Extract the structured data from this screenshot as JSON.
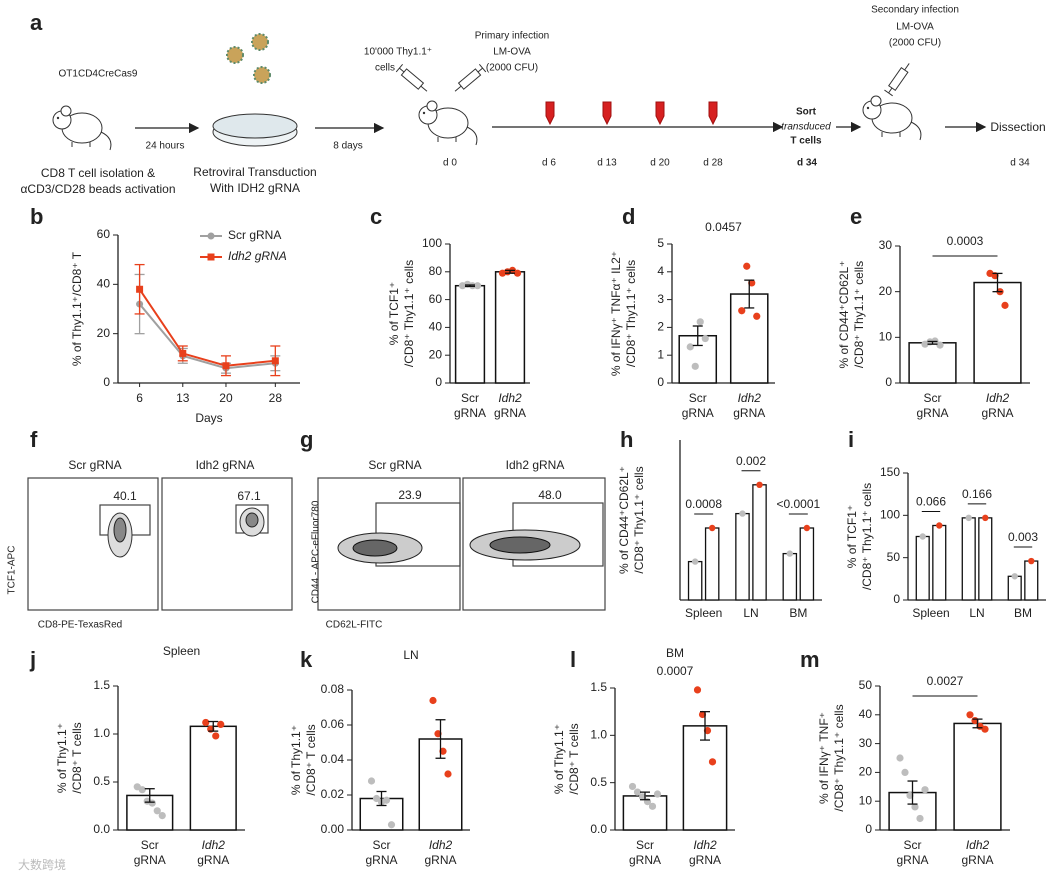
{
  "schematic": {
    "label": "a",
    "texts": [
      "OT1CD4CreCas9",
      "24 hours",
      "CD8 T cell isolation &",
      "αCD3/CD28 beads activation",
      "Retroviral Transduction",
      "With IDH2 gRNA",
      "8 days",
      "10'000 Thy1.1⁺",
      "cells",
      "Primary infection",
      "LM-OVA",
      "(2000 CFU)",
      "d 0",
      "d 6",
      "d 13",
      "d 20",
      "d 28",
      "d 34",
      "Sort",
      "transduced",
      "T cells",
      "Secondary infection",
      "LM-OVA",
      "(2000 CFU)",
      "Dissection",
      "d 34"
    ]
  },
  "flow": [
    {
      "label": "f",
      "samples": [
        "Scr gRNA",
        "Idh2 gRNA"
      ],
      "gates": [
        "40.1",
        "67.1"
      ],
      "ylabel": "TCF1-APC",
      "xlabel": "CD8-PE-TexasRed"
    },
    {
      "label": "g",
      "samples": [
        "Scr gRNA",
        "Idh2 gRNA"
      ],
      "gates": [
        "23.9",
        "48.0"
      ],
      "ylabel": "CD44 - APC-eFluor780",
      "xlabel": "CD62L-FITC"
    }
  ],
  "watermark": "大数跨境",
  "chart_data": [
    {
      "type": "line",
      "panel": "b",
      "x": [
        6,
        13,
        20,
        28
      ],
      "xlim": [
        2.5,
        32
      ],
      "xticks": [
        6,
        13,
        20,
        28
      ],
      "xlabel": "Days",
      "ylabel": [
        "% of Thy1.1⁺/CD8⁺ T"
      ],
      "ylim": [
        0,
        60
      ],
      "yticks": [
        0,
        20,
        40,
        60
      ],
      "series": [
        {
          "name": "Scr gRNA",
          "color": "#a0a0a0",
          "values": [
            32,
            11,
            6,
            8
          ],
          "errors": [
            12,
            3,
            2,
            3
          ]
        },
        {
          "name": "Idh2 gRNA",
          "color": "#e8401c",
          "values": [
            38,
            12,
            7,
            9
          ],
          "errors": [
            10,
            3,
            4,
            6
          ]
        }
      ]
    },
    {
      "type": "bar",
      "panel": "c",
      "ylabel": [
        "% of TCF1⁺",
        "/CD8⁺ Thy1.1⁺ cells"
      ],
      "categories": [
        [
          "Scr",
          "gRNA"
        ],
        [
          "Idh2",
          "gRNA"
        ]
      ],
      "values": [
        70,
        80
      ],
      "errors": [
        0.5,
        1
      ],
      "points": [
        [
          70,
          71,
          70,
          70
        ],
        [
          79,
          80,
          81,
          79
        ]
      ],
      "colors": [
        "#bdbdbd",
        "#e8401c"
      ],
      "ylim": [
        0,
        100
      ],
      "yticks": [
        0,
        20,
        40,
        60,
        80,
        100
      ]
    },
    {
      "type": "bar",
      "panel": "d",
      "ylabel": [
        "% of IFNγ⁺ TNFα⁺ IL2⁺",
        "/CD8⁺ Thy1.1⁺ cells"
      ],
      "categories": [
        [
          "Scr",
          "gRNA"
        ],
        [
          "Idh2",
          "gRNA"
        ]
      ],
      "values": [
        1.7,
        3.2
      ],
      "errors": [
        0.35,
        0.5
      ],
      "points": [
        [
          1.3,
          0.6,
          2.2,
          1.6
        ],
        [
          2.6,
          4.2,
          3.6,
          2.4
        ]
      ],
      "colors": [
        "#bdbdbd",
        "#e8401c"
      ],
      "ylim": [
        0,
        5
      ],
      "yticks": [
        0,
        1,
        2,
        3,
        4,
        5
      ],
      "pvalue": "0.0457",
      "bracket": false
    },
    {
      "type": "bar",
      "panel": "e",
      "ylabel": [
        "% of CD44⁺CD62L⁺",
        "/CD8⁺ Thy1.1⁺ cells"
      ],
      "categories": [
        [
          "Scr",
          "gRNA"
        ],
        [
          "Idh2",
          "gRNA"
        ]
      ],
      "values": [
        8.8,
        22
      ],
      "errors": [
        0.3,
        2
      ],
      "points": [
        [
          8.5,
          9,
          9.2,
          8.3
        ],
        [
          24,
          23.5,
          20,
          17
        ]
      ],
      "colors": [
        "#bdbdbd",
        "#e8401c"
      ],
      "ylim": [
        0,
        30
      ],
      "yticks": [
        0,
        10,
        20,
        30
      ],
      "pvalue": "0.0003"
    },
    {
      "type": "grouped_bar",
      "panel": "h",
      "ylabel": [
        "% of CD44⁺CD62L⁺",
        "/CD8⁺ Thy1.1⁺ cells"
      ],
      "categories": [
        "Spleen",
        "LN",
        "BM"
      ],
      "ylim": [
        0,
        100
      ],
      "series": [
        {
          "color": "#bdbdbd",
          "values": [
            24,
            54,
            29
          ]
        },
        {
          "color": "#e8401c",
          "values": [
            45,
            72,
            45
          ]
        }
      ],
      "pvalues": [
        "0.0008",
        "0.002",
        "<0.0001"
      ]
    },
    {
      "type": "grouped_bar",
      "panel": "i",
      "ylabel": [
        "% of TCF1⁺",
        "/CD8⁺ Thy1.1⁺ cells"
      ],
      "categories": [
        "Spleen",
        "LN",
        "BM"
      ],
      "ylim": [
        0,
        150
      ],
      "yticks": [
        0,
        50,
        100,
        150
      ],
      "series": [
        {
          "color": "#bdbdbd",
          "values": [
            75,
            97,
            28
          ]
        },
        {
          "color": "#e8401c",
          "values": [
            88,
            97,
            46
          ]
        }
      ],
      "pvalues": [
        "0.066",
        "0.166",
        "0.003"
      ]
    },
    {
      "type": "bar",
      "panel": "j",
      "title": "Spleen",
      "ylabel": [
        "% of Thy1.1⁺",
        "/CD8⁺ T cells"
      ],
      "categories": [
        [
          "Scr",
          "gRNA"
        ],
        [
          "Idh2",
          "gRNA"
        ]
      ],
      "values": [
        0.36,
        1.08
      ],
      "errors": [
        0.07,
        0.05
      ],
      "points": [
        [
          0.45,
          0.42,
          0.3,
          0.28,
          0.2,
          0.15
        ],
        [
          1.12,
          1.05,
          0.98,
          1.1
        ]
      ],
      "colors": [
        "#bdbdbd",
        "#e8401c"
      ],
      "ylim": [
        0,
        1.5
      ],
      "yticks": [
        {
          "value": 0,
          "label": "0.0"
        },
        0.5,
        {
          "value": 1,
          "label": "1.0"
        },
        1.5
      ]
    },
    {
      "type": "bar",
      "panel": "k",
      "title": "LN",
      "ylabel": [
        "% of Thy1.1⁺",
        "/CD8⁺ T cells"
      ],
      "categories": [
        [
          "Scr",
          "gRNA"
        ],
        [
          "Idh2",
          "gRNA"
        ]
      ],
      "values": [
        0.018,
        0.052
      ],
      "errors": [
        0.004,
        0.011
      ],
      "points": [
        [
          0.028,
          0.018,
          0.016,
          0.017,
          0.003
        ],
        [
          0.074,
          0.055,
          0.045,
          0.032
        ]
      ],
      "colors": [
        "#bdbdbd",
        "#e8401c"
      ],
      "ylim": [
        0,
        0.08
      ],
      "yticks": [
        {
          "value": 0,
          "label": "0.00"
        },
        0.02,
        0.04,
        0.06,
        0.08
      ]
    },
    {
      "type": "bar",
      "panel": "l",
      "title": "BM",
      "ylabel": [
        "% of Thy1.1⁺",
        "/CD8⁺ T cells"
      ],
      "categories": [
        [
          "Scr",
          "gRNA"
        ],
        [
          "Idh2",
          "gRNA"
        ]
      ],
      "values": [
        0.36,
        1.1
      ],
      "errors": [
        0.04,
        0.15
      ],
      "points": [
        [
          0.46,
          0.4,
          0.35,
          0.3,
          0.25,
          0.38
        ],
        [
          1.48,
          1.22,
          1.05,
          0.72
        ]
      ],
      "colors": [
        "#bdbdbd",
        "#e8401c"
      ],
      "ylim": [
        0,
        1.5
      ],
      "yticks": [
        {
          "value": 0,
          "label": "0.0"
        },
        0.5,
        {
          "value": 1,
          "label": "1.0"
        },
        1.5
      ],
      "pvalue": "0.0007",
      "bracket": false
    },
    {
      "type": "bar",
      "panel": "m",
      "ylabel": [
        "% of IFNγ⁺ TNF⁺",
        "/CD8⁺ Thy1.1⁺ cells"
      ],
      "categories": [
        [
          "Scr",
          "gRNA"
        ],
        [
          "Idh2",
          "gRNA"
        ]
      ],
      "values": [
        13,
        37
      ],
      "errors": [
        4,
        1.5
      ],
      "points": [
        [
          25,
          20,
          12,
          8,
          4,
          14
        ],
        [
          40,
          38,
          36,
          35
        ]
      ],
      "colors": [
        "#bdbdbd",
        "#e8401c"
      ],
      "ylim": [
        0,
        50
      ],
      "yticks": [
        0,
        10,
        20,
        30,
        40,
        50
      ],
      "pvalue": "0.0027"
    }
  ]
}
